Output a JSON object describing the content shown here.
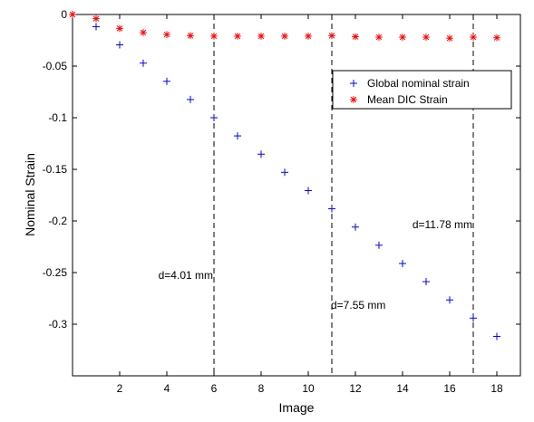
{
  "chart_data": {
    "type": "scatter",
    "title": "",
    "xlabel": "Image",
    "ylabel": "Nominal Strain",
    "xlim": [
      0,
      19
    ],
    "ylim": [
      -0.35,
      0
    ],
    "xticks": [
      2,
      4,
      6,
      8,
      10,
      12,
      14,
      16,
      18
    ],
    "yticks": [
      0,
      -0.05,
      -0.1,
      -0.15,
      -0.2,
      -0.25,
      -0.3
    ],
    "ytick_labels": [
      "0",
      "-0.05",
      "-0.1",
      "-0.15",
      "-0.2",
      "-0.25",
      "-0.3"
    ],
    "grid": false,
    "legend_position": "top-right",
    "series": [
      {
        "name": "Global nominal strain",
        "marker": "+",
        "color": "#0000ff",
        "x": [
          0,
          1,
          2,
          3,
          4,
          5,
          6,
          7,
          8,
          9,
          10,
          11,
          12,
          13,
          14,
          15,
          16,
          17,
          18
        ],
        "y": [
          0,
          -0.0118,
          -0.0294,
          -0.0471,
          -0.0647,
          -0.0824,
          -0.1,
          -0.1176,
          -0.1353,
          -0.1529,
          -0.1706,
          -0.1882,
          -0.2059,
          -0.2235,
          -0.2412,
          -0.2588,
          -0.2765,
          -0.2941,
          -0.3118
        ]
      },
      {
        "name": "Mean DIC Strain",
        "marker": "*",
        "color": "#ff0000",
        "x": [
          0,
          1,
          2,
          3,
          4,
          5,
          6,
          7,
          8,
          9,
          10,
          11,
          12,
          13,
          14,
          15,
          16,
          17,
          18
        ],
        "y": [
          0,
          -0.004,
          -0.0135,
          -0.0175,
          -0.0195,
          -0.0205,
          -0.021,
          -0.021,
          -0.021,
          -0.021,
          -0.021,
          -0.0205,
          -0.0215,
          -0.022,
          -0.022,
          -0.022,
          -0.023,
          -0.022,
          -0.0225
        ]
      }
    ],
    "vlines": [
      6,
      11,
      17
    ],
    "annotations": [
      {
        "text": "d=4.01 mm",
        "x": 6,
        "y": -0.2525
      },
      {
        "text": "d=7.55 mm",
        "x": 11,
        "y": -0.2815
      },
      {
        "text": "d=11.78 mm",
        "x": 17,
        "y": -0.2035
      }
    ]
  }
}
